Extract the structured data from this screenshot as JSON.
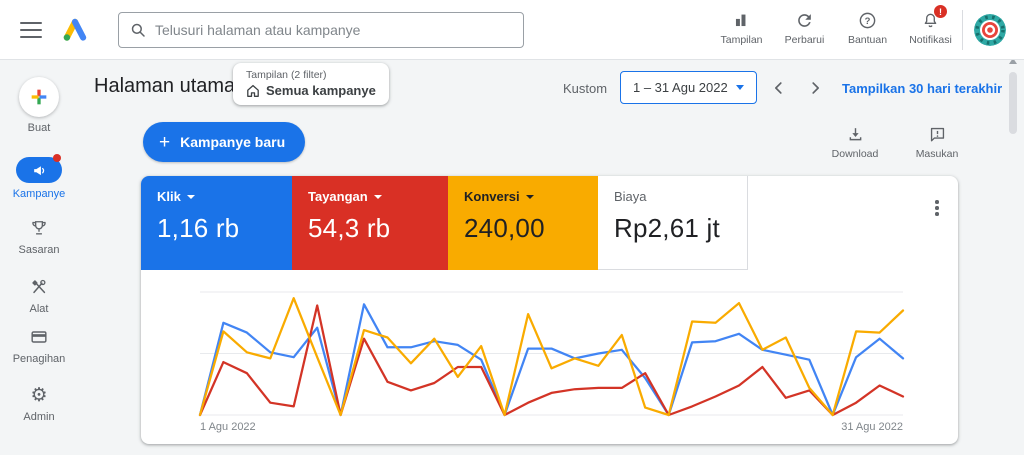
{
  "topbar": {
    "search_placeholder": "Telusuri halaman atau kampanye",
    "actions": [
      {
        "label": "Tampilan",
        "icon": "columns-chart-icon"
      },
      {
        "label": "Perbarui",
        "icon": "refresh-icon"
      },
      {
        "label": "Bantuan",
        "icon": "help-icon"
      },
      {
        "label": "Notifikasi",
        "icon": "bell-icon",
        "badge": "!"
      }
    ]
  },
  "sidebar": {
    "items": [
      {
        "label": "Buat",
        "icon": "multicolor-plus-icon"
      },
      {
        "label": "Kampanye",
        "icon": "megaphone-icon",
        "active": true
      },
      {
        "label": "Sasaran",
        "icon": "trophy-icon"
      },
      {
        "label": "Alat",
        "icon": "tools-icon"
      },
      {
        "label": "Penagihan",
        "icon": "credit-card-icon"
      },
      {
        "label": "Admin",
        "icon": "gear-icon"
      }
    ]
  },
  "header": {
    "title": "Halaman utama",
    "filter_chip": {
      "line1": "Tampilan (2 filter)",
      "line2": "Semua kampanye"
    },
    "date_label": "Kustom",
    "date_range": "1 – 31 Agu 2022",
    "quick_link": "Tampilkan 30 hari terakhir"
  },
  "toolbar": {
    "new_campaign": "Kampanye baru",
    "download": "Download",
    "feedback": "Masukan"
  },
  "metrics": [
    {
      "label": "Klik",
      "value": "1,16 rb",
      "color": "#1a73e8",
      "text_color": "#ffffff",
      "dropdown": true
    },
    {
      "label": "Tayangan",
      "value": "54,3 rb",
      "color": "#d93025",
      "text_color": "#ffffff",
      "dropdown": true
    },
    {
      "label": "Konversi",
      "value": "240,00",
      "color": "#f9ab00",
      "text_color": "#202124",
      "dropdown": true
    },
    {
      "label": "Biaya",
      "value": "Rp2,61 jt",
      "color": "#ffffff",
      "text_color": "#202124",
      "dropdown": false
    }
  ],
  "chart_data": {
    "type": "line",
    "title": "",
    "xlabel": "",
    "ylabel": "",
    "x_axis_labels": [
      "1 Agu 2022",
      "31 Agu 2022"
    ],
    "x_unit": "day of August 2022, days 1-31",
    "ylim": [
      0,
      100
    ],
    "y_note": "y axis has no tick labels in UI; values are percent of plot height, 3 horizontal gridlines",
    "grid": true,
    "legend_position": "none (colors match metric tiles)",
    "series": [
      {
        "name": "Klik",
        "color": "#4285f4",
        "values": [
          0,
          75,
          67,
          51,
          47,
          71,
          0,
          90,
          55,
          55,
          60,
          57,
          45,
          0,
          54,
          54,
          46,
          50,
          53,
          30,
          0,
          59,
          60,
          66,
          53,
          49,
          45,
          0,
          47,
          62,
          46
        ]
      },
      {
        "name": "Tayangan",
        "color": "#d33426",
        "values": [
          0,
          43,
          34,
          10,
          7,
          89,
          0,
          62,
          27,
          20,
          26,
          39,
          39,
          0,
          10,
          18,
          21,
          22,
          22,
          34,
          0,
          7,
          15,
          24,
          39,
          14,
          20,
          0,
          10,
          24,
          15
        ]
      },
      {
        "name": "Konversi",
        "color": "#f9ab00",
        "values": [
          0,
          68,
          51,
          46,
          95,
          47,
          0,
          69,
          63,
          42,
          62,
          31,
          56,
          0,
          82,
          38,
          46,
          40,
          65,
          6,
          0,
          76,
          75,
          91,
          53,
          63,
          22,
          0,
          68,
          67,
          85
        ]
      }
    ]
  }
}
